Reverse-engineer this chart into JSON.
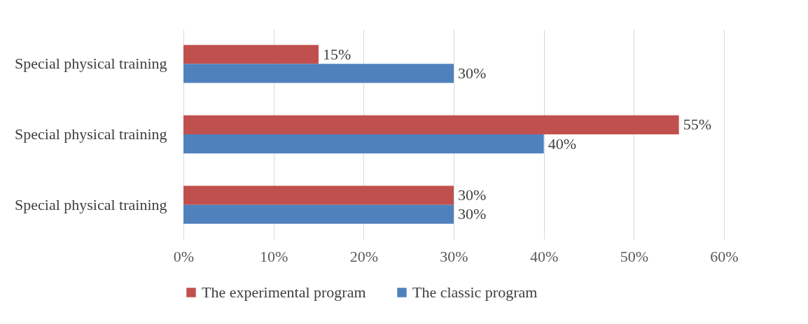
{
  "chart_data": {
    "type": "bar",
    "orientation": "horizontal",
    "categories": [
      "Special physical training",
      "Special physical training",
      "Special physical training"
    ],
    "series": [
      {
        "name": "The experimental program",
        "color": "#c0504d",
        "values": [
          15,
          55,
          30
        ],
        "value_labels": [
          "15%",
          "55%",
          "30%"
        ]
      },
      {
        "name": "The classic program",
        "color": "#4f81bd",
        "values": [
          30,
          40,
          30
        ],
        "value_labels": [
          "30%",
          "40%",
          "30%"
        ]
      }
    ],
    "xlim": [
      0,
      60
    ],
    "xticks": [
      {
        "value": 0,
        "label": "0%"
      },
      {
        "value": 10,
        "label": "10%"
      },
      {
        "value": 20,
        "label": "20%"
      },
      {
        "value": 30,
        "label": "30%"
      },
      {
        "value": 40,
        "label": "40%"
      },
      {
        "value": 50,
        "label": "50%"
      },
      {
        "value": 60,
        "label": "60%"
      }
    ],
    "grid": "x",
    "legend": "bottom"
  }
}
